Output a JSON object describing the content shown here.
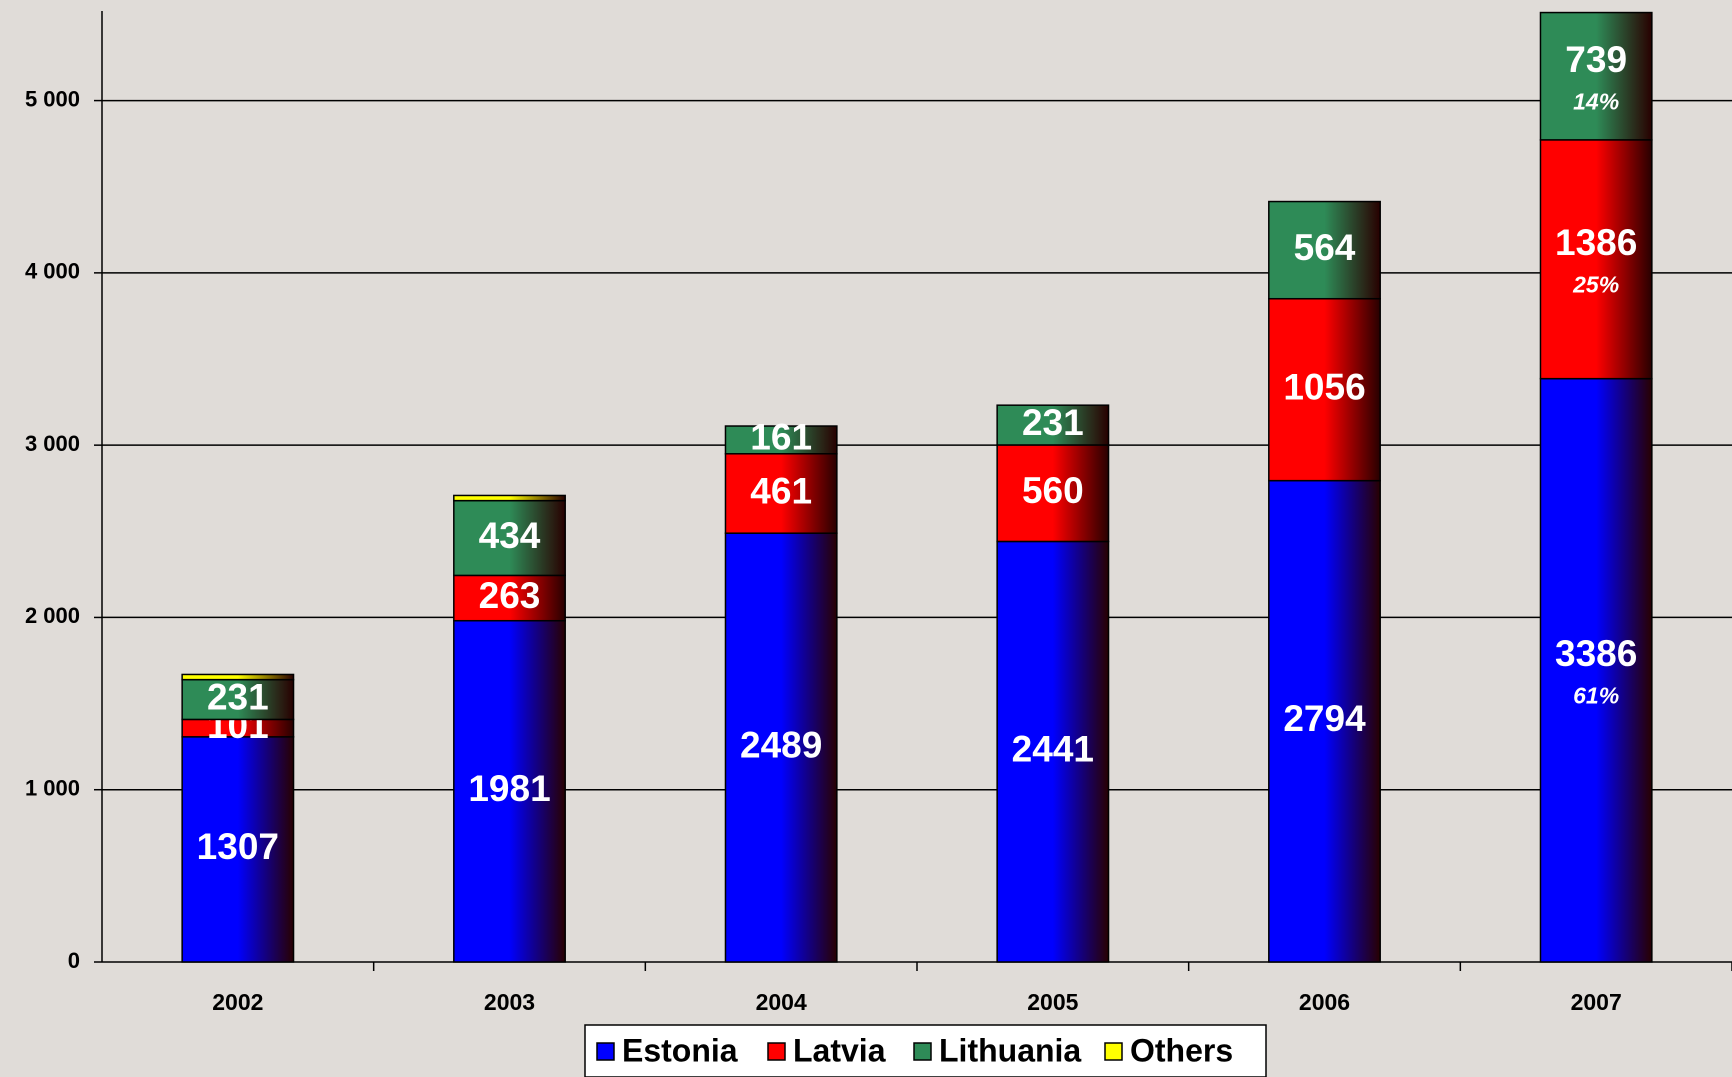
{
  "chart_data": {
    "type": "stacked-bar",
    "categories": [
      "2002",
      "2003",
      "2004",
      "2005",
      "2006",
      "2007"
    ],
    "series": [
      {
        "name": "Estonia",
        "color": "#0000ff",
        "values": [
          1307,
          1981,
          2489,
          2441,
          2794,
          3386
        ],
        "share_labels": [
          null,
          null,
          null,
          null,
          null,
          "61%"
        ]
      },
      {
        "name": "Latvia",
        "color": "#ff0000",
        "values": [
          101,
          263,
          461,
          560,
          1056,
          1386
        ],
        "share_labels": [
          null,
          null,
          null,
          null,
          null,
          "25%"
        ]
      },
      {
        "name": "Lithuania",
        "color": "#2e8b57",
        "values": [
          231,
          434,
          161,
          231,
          564,
          739
        ],
        "share_labels": [
          null,
          null,
          null,
          null,
          null,
          "14%"
        ]
      },
      {
        "name": "Others",
        "color": "#ffff00",
        "values": [
          30,
          30,
          0,
          0,
          0,
          0
        ]
      }
    ],
    "ylim": [
      0,
      5520
    ],
    "yticks": [
      0,
      {
        "value": 1000,
        "label": "1 000"
      },
      {
        "value": 2000,
        "label": "2 000"
      },
      {
        "value": 3000,
        "label": "3 000"
      },
      {
        "value": 4000,
        "label": "4 000"
      },
      {
        "value": 5000,
        "label": "5 000"
      }
    ],
    "grid": true
  }
}
